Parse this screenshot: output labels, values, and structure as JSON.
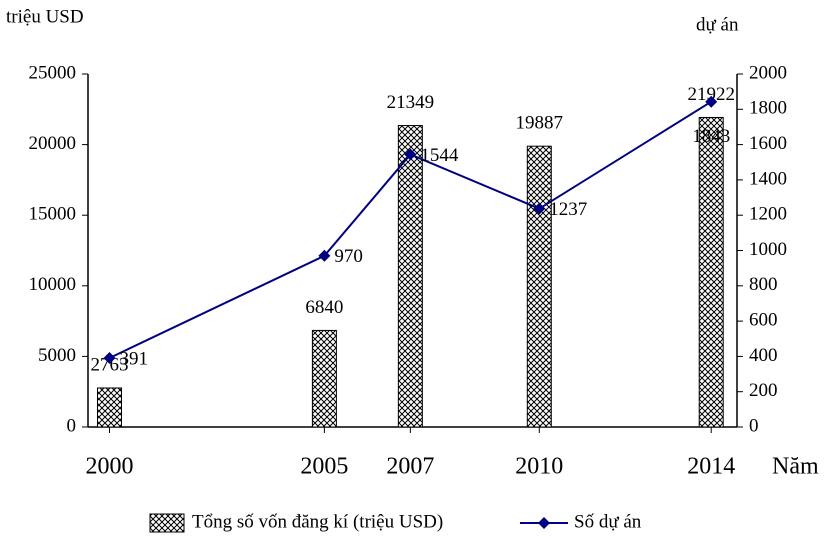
{
  "chart_data": {
    "type": "bar_line",
    "ylabel": "triệu USD",
    "y2label": "dự án",
    "xlabel": "Năm",
    "x": [
      2000,
      2005,
      2007,
      2010,
      2014
    ],
    "xlim": [
      1999.5,
      2014.6
    ],
    "ylim": [
      0,
      25000
    ],
    "yticks": [
      0,
      5000,
      10000,
      15000,
      20000,
      25000
    ],
    "y2lim": [
      0,
      2000
    ],
    "y2ticks": [
      0,
      200,
      400,
      600,
      800,
      1000,
      1200,
      1400,
      1600,
      1800,
      2000
    ],
    "series": [
      {
        "name": "Tổng số vốn đăng kí (triệu USD)",
        "type": "bar",
        "color": "#000000",
        "values": [
          2763,
          6840,
          21349,
          19887,
          21922
        ]
      },
      {
        "name": "Số dự án",
        "type": "line",
        "axis": "y2",
        "color": "#000080",
        "values": [
          391,
          970,
          1544,
          1237,
          1843
        ]
      }
    ]
  }
}
